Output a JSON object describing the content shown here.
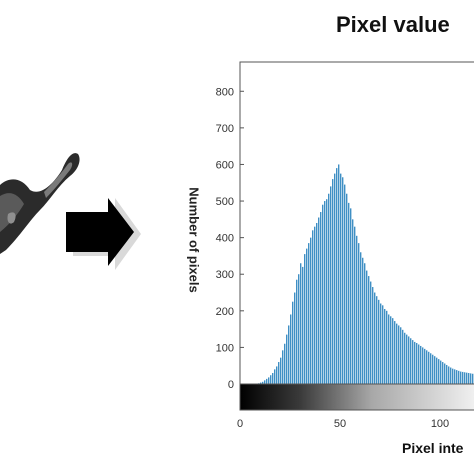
{
  "chart_data": {
    "type": "bar",
    "title": "Pixel value",
    "xlabel": "Pixel inte",
    "ylabel": "Number of pixels",
    "ylim": [
      0,
      880
    ],
    "y_ticks": [
      0,
      100,
      200,
      300,
      400,
      500,
      600,
      700,
      800
    ],
    "x_ticks": [
      0,
      50,
      100
    ],
    "bar_color": "#3f8fc4",
    "x": [
      9,
      10,
      11,
      12,
      13,
      14,
      15,
      16,
      17,
      18,
      19,
      20,
      21,
      22,
      23,
      24,
      25,
      26,
      27,
      28,
      29,
      30,
      31,
      32,
      33,
      34,
      35,
      36,
      37,
      38,
      39,
      40,
      41,
      42,
      43,
      44,
      45,
      46,
      47,
      48,
      49,
      50,
      51,
      52,
      53,
      54,
      55,
      56,
      57,
      58,
      59,
      60,
      61,
      62,
      63,
      64,
      65,
      66,
      67,
      68,
      69,
      70,
      71,
      72,
      73,
      74,
      75,
      76,
      77,
      78,
      79,
      80,
      81,
      82,
      83,
      84,
      85,
      86,
      87,
      88,
      89,
      90,
      91,
      92,
      93,
      94,
      95,
      96,
      97,
      98,
      99,
      100,
      101,
      102,
      103,
      104,
      105,
      106,
      107,
      108,
      109,
      110,
      111,
      112,
      113,
      114,
      115,
      116,
      117,
      118,
      119,
      120,
      121,
      122,
      123,
      124,
      125,
      126,
      127,
      128,
      129,
      130,
      131,
      132,
      133,
      134,
      135
    ],
    "values": [
      2,
      4,
      6,
      10,
      14,
      18,
      24,
      30,
      40,
      48,
      60,
      72,
      92,
      110,
      135,
      160,
      190,
      225,
      250,
      285,
      300,
      330,
      320,
      355,
      370,
      385,
      400,
      420,
      430,
      440,
      455,
      470,
      490,
      500,
      505,
      520,
      540,
      560,
      575,
      590,
      600,
      575,
      565,
      545,
      520,
      495,
      480,
      450,
      430,
      405,
      385,
      360,
      345,
      330,
      310,
      295,
      280,
      265,
      250,
      240,
      230,
      220,
      215,
      205,
      200,
      190,
      185,
      180,
      172,
      165,
      160,
      155,
      148,
      140,
      135,
      130,
      125,
      120,
      115,
      112,
      108,
      104,
      100,
      96,
      92,
      88,
      84,
      80,
      76,
      72,
      68,
      64,
      60,
      56,
      52,
      48,
      45,
      42,
      40,
      38,
      36,
      34,
      33,
      32,
      31,
      30,
      29,
      28,
      27,
      26,
      25,
      24,
      23,
      22,
      21,
      20,
      19,
      18,
      17,
      16,
      15,
      14,
      13,
      12,
      11,
      10,
      9
    ]
  }
}
